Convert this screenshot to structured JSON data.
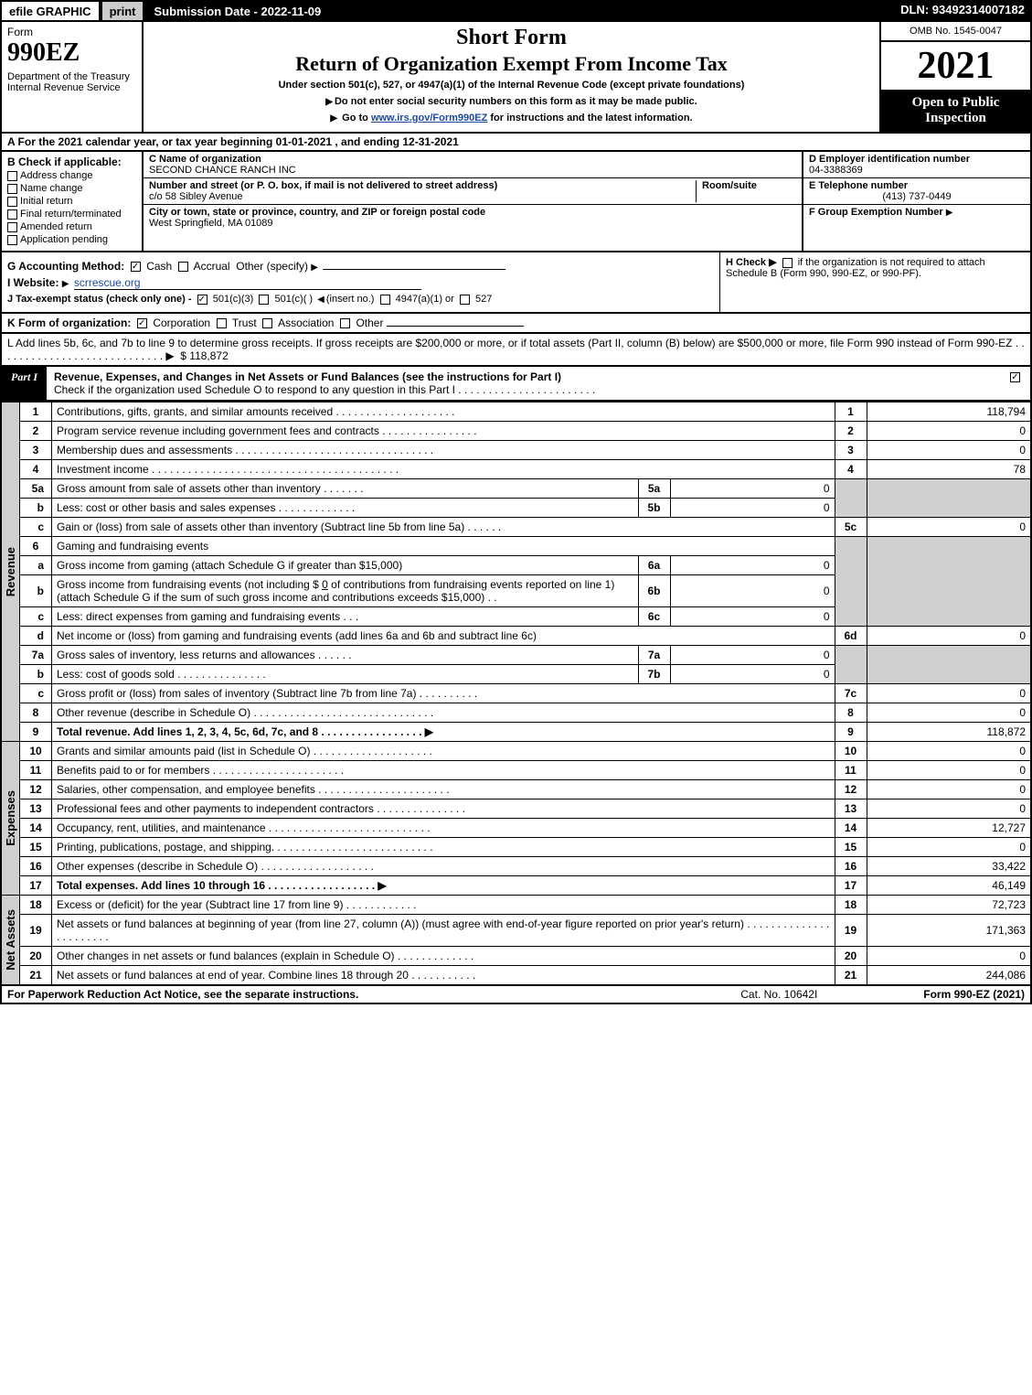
{
  "topbar": {
    "efile": "efile GRAPHIC",
    "print": "print",
    "subdate_label": "Submission Date - 2022-11-09",
    "dln": "DLN: 93492314007182"
  },
  "header": {
    "form_label": "Form",
    "form_number": "990EZ",
    "dept": "Department of the Treasury\nInternal Revenue Service",
    "title1": "Short Form",
    "title2": "Return of Organization Exempt From Income Tax",
    "sub1": "Under section 501(c), 527, or 4947(a)(1) of the Internal Revenue Code (except private foundations)",
    "sub2": "Do not enter social security numbers on this form as it may be made public.",
    "sub3_pre": "Go to ",
    "sub3_link": "www.irs.gov/Form990EZ",
    "sub3_post": " for instructions and the latest information.",
    "omb": "OMB No. 1545-0047",
    "year": "2021",
    "inspect": "Open to Public Inspection"
  },
  "row_a": "A  For the 2021 calendar year, or tax year beginning 01-01-2021 , and ending 12-31-2021",
  "section_b": {
    "header": "B  Check if applicable:",
    "opts": [
      "Address change",
      "Name change",
      "Initial return",
      "Final return/terminated",
      "Amended return",
      "Application pending"
    ]
  },
  "section_c": {
    "name_label": "C Name of organization",
    "name": "SECOND CHANCE RANCH INC",
    "street_label": "Number and street (or P. O. box, if mail is not delivered to street address)",
    "room_label": "Room/suite",
    "street": "c/o 58 Sibley Avenue",
    "city_label": "City or town, state or province, country, and ZIP or foreign postal code",
    "city": "West Springfield, MA  01089"
  },
  "section_d": {
    "ein_label": "D Employer identification number",
    "ein": "04-3388369",
    "phone_label": "E Telephone number",
    "phone": "(413) 737-0449",
    "group_label": "F Group Exemption Number"
  },
  "section_g": {
    "accounting_label": "G Accounting Method:",
    "cash": "Cash",
    "accrual": "Accrual",
    "other": "Other (specify)",
    "website_label": "I Website: ",
    "website": "scrrescue.org",
    "tax_exempt": "J Tax-exempt status (check only one) -",
    "te_501c3": "501(c)(3)",
    "te_501c": "501(c)(  )",
    "te_insert": "(insert no.)",
    "te_4947": "4947(a)(1) or",
    "te_527": "527",
    "h_label": "H  Check ▶",
    "h_text": "if the organization is not required to attach Schedule B (Form 990, 990-EZ, or 990-PF)."
  },
  "section_k": "K Form of organization:",
  "k_opts": [
    "Corporation",
    "Trust",
    "Association",
    "Other"
  ],
  "section_l": {
    "text": "L Add lines 5b, 6c, and 7b to line 9 to determine gross receipts. If gross receipts are $200,000 or more, or if total assets (Part II, column (B) below) are $500,000 or more, file Form 990 instead of Form 990-EZ . . . . . . . . . . . . . . . . . . . . . . . . . . . . ▶",
    "amount": "$ 118,872"
  },
  "part1": {
    "tab": "Part I",
    "title": "Revenue, Expenses, and Changes in Net Assets or Fund Balances (see the instructions for Part I)",
    "subtitle": "Check if the organization used Schedule O to respond to any question in this Part I . . . . . . . . . . . . . . . . . . . . . . ."
  },
  "sidelabels": {
    "revenue": "Revenue",
    "expenses": "Expenses",
    "netassets": "Net Assets"
  },
  "lines": {
    "l1": {
      "n": "1",
      "d": "Contributions, gifts, grants, and similar amounts received . . . . . . . . . . . . . . . . . . . .",
      "rn": "1",
      "rv": "118,794"
    },
    "l2": {
      "n": "2",
      "d": "Program service revenue including government fees and contracts . . . . . . . . . . . . . . . .",
      "rn": "2",
      "rv": "0"
    },
    "l3": {
      "n": "3",
      "d": "Membership dues and assessments . . . . . . . . . . . . . . . . . . . . . . . . . . . . . . . . .",
      "rn": "3",
      "rv": "0"
    },
    "l4": {
      "n": "4",
      "d": "Investment income . . . . . . . . . . . . . . . . . . . . . . . . . . . . . . . . . . . . . . . . .",
      "rn": "4",
      "rv": "78"
    },
    "l5a": {
      "n": "5a",
      "d": "Gross amount from sale of assets other than inventory . . . . . . .",
      "in": "5a",
      "iv": "0"
    },
    "l5b": {
      "n": "b",
      "d": "Less: cost or other basis and sales expenses . . . . . . . . . . . . .",
      "in": "5b",
      "iv": "0"
    },
    "l5c": {
      "n": "c",
      "d": "Gain or (loss) from sale of assets other than inventory (Subtract line 5b from line 5a) . . . . . .",
      "rn": "5c",
      "rv": "0"
    },
    "l6": {
      "n": "6",
      "d": "Gaming and fundraising events"
    },
    "l6a": {
      "n": "a",
      "d": "Gross income from gaming (attach Schedule G if greater than $15,000)",
      "in": "6a",
      "iv": "0"
    },
    "l6b": {
      "n": "b",
      "d1": "Gross income from fundraising events (not including $ ",
      "d1v": "0",
      "d1post": " of contributions from fundraising events reported on line 1) (attach Schedule G if the sum of such gross income and contributions exceeds $15,000)   .  .",
      "in": "6b",
      "iv": "0"
    },
    "l6c": {
      "n": "c",
      "d": "Less: direct expenses from gaming and fundraising events    .  .  .",
      "in": "6c",
      "iv": "0"
    },
    "l6d": {
      "n": "d",
      "d": "Net income or (loss) from gaming and fundraising events (add lines 6a and 6b and subtract line 6c)",
      "rn": "6d",
      "rv": "0"
    },
    "l7a": {
      "n": "7a",
      "d": "Gross sales of inventory, less returns and allowances . . . . . .",
      "in": "7a",
      "iv": "0"
    },
    "l7b": {
      "n": "b",
      "d": "Less: cost of goods sold      .  .  .  .  .  .  .  .  .  .  .  .  .  .  .",
      "in": "7b",
      "iv": "0"
    },
    "l7c": {
      "n": "c",
      "d": "Gross profit or (loss) from sales of inventory (Subtract line 7b from line 7a) . . . . . . . . . .",
      "rn": "7c",
      "rv": "0"
    },
    "l8": {
      "n": "8",
      "d": "Other revenue (describe in Schedule O) . . . . . . . . . . . . . . . . . . . . . . . . . . . . . .",
      "rn": "8",
      "rv": "0"
    },
    "l9": {
      "n": "9",
      "d": "Total revenue. Add lines 1, 2, 3, 4, 5c, 6d, 7c, and 8  . . . . . . . . . . . . . . . . .    ▶",
      "rn": "9",
      "rv": "118,872"
    },
    "l10": {
      "n": "10",
      "d": "Grants and similar amounts paid (list in Schedule O) . . . . . . . . . . . . . . . . . . . .",
      "rn": "10",
      "rv": "0"
    },
    "l11": {
      "n": "11",
      "d": "Benefits paid to or for members     .  .  .  .  .  .  .  .  .  .  .  .  .  .  .  .  .  .  .  .  .  .",
      "rn": "11",
      "rv": "0"
    },
    "l12": {
      "n": "12",
      "d": "Salaries, other compensation, and employee benefits . . . . . . . . . . . . . . . . . . . . . .",
      "rn": "12",
      "rv": "0"
    },
    "l13": {
      "n": "13",
      "d": "Professional fees and other payments to independent contractors . . . . . . . . . . . . . . .",
      "rn": "13",
      "rv": "0"
    },
    "l14": {
      "n": "14",
      "d": "Occupancy, rent, utilities, and maintenance . . . . . . . . . . . . . . . . . . . . . . . . . . .",
      "rn": "14",
      "rv": "12,727"
    },
    "l15": {
      "n": "15",
      "d": "Printing, publications, postage, and shipping. . . . . . . . . . . . . . . . . . . . . . . . . . .",
      "rn": "15",
      "rv": "0"
    },
    "l16": {
      "n": "16",
      "d": "Other expenses (describe in Schedule O)     .  .  .  .  .  .  .  .  .  .  .  .  .  .  .  .  .  .  .",
      "rn": "16",
      "rv": "33,422"
    },
    "l17": {
      "n": "17",
      "d": "Total expenses. Add lines 10 through 16     .  .  .  .  .  .  .  .  .  .  .  .  .  .  .  .  .  .    ▶",
      "rn": "17",
      "rv": "46,149"
    },
    "l18": {
      "n": "18",
      "d": "Excess or (deficit) for the year (Subtract line 17 from line 9)       .  .  .  .  .  .  .  .  .  .  .  .",
      "rn": "18",
      "rv": "72,723"
    },
    "l19": {
      "n": "19",
      "d": "Net assets or fund balances at beginning of year (from line 27, column (A)) (must agree with end-of-year figure reported on prior year's return) . . . . . . . . . . . . . . . . . . . . . . .",
      "rn": "19",
      "rv": "171,363"
    },
    "l20": {
      "n": "20",
      "d": "Other changes in net assets or fund balances (explain in Schedule O) . . . . . . . . . . . . .",
      "rn": "20",
      "rv": "0"
    },
    "l21": {
      "n": "21",
      "d": "Net assets or fund balances at end of year. Combine lines 18 through 20 . . . . . . . . . . .",
      "rn": "21",
      "rv": "244,086"
    }
  },
  "footer": {
    "left": "For Paperwork Reduction Act Notice, see the separate instructions.",
    "mid": "Cat. No. 10642I",
    "right": "Form 990-EZ (2021)"
  }
}
